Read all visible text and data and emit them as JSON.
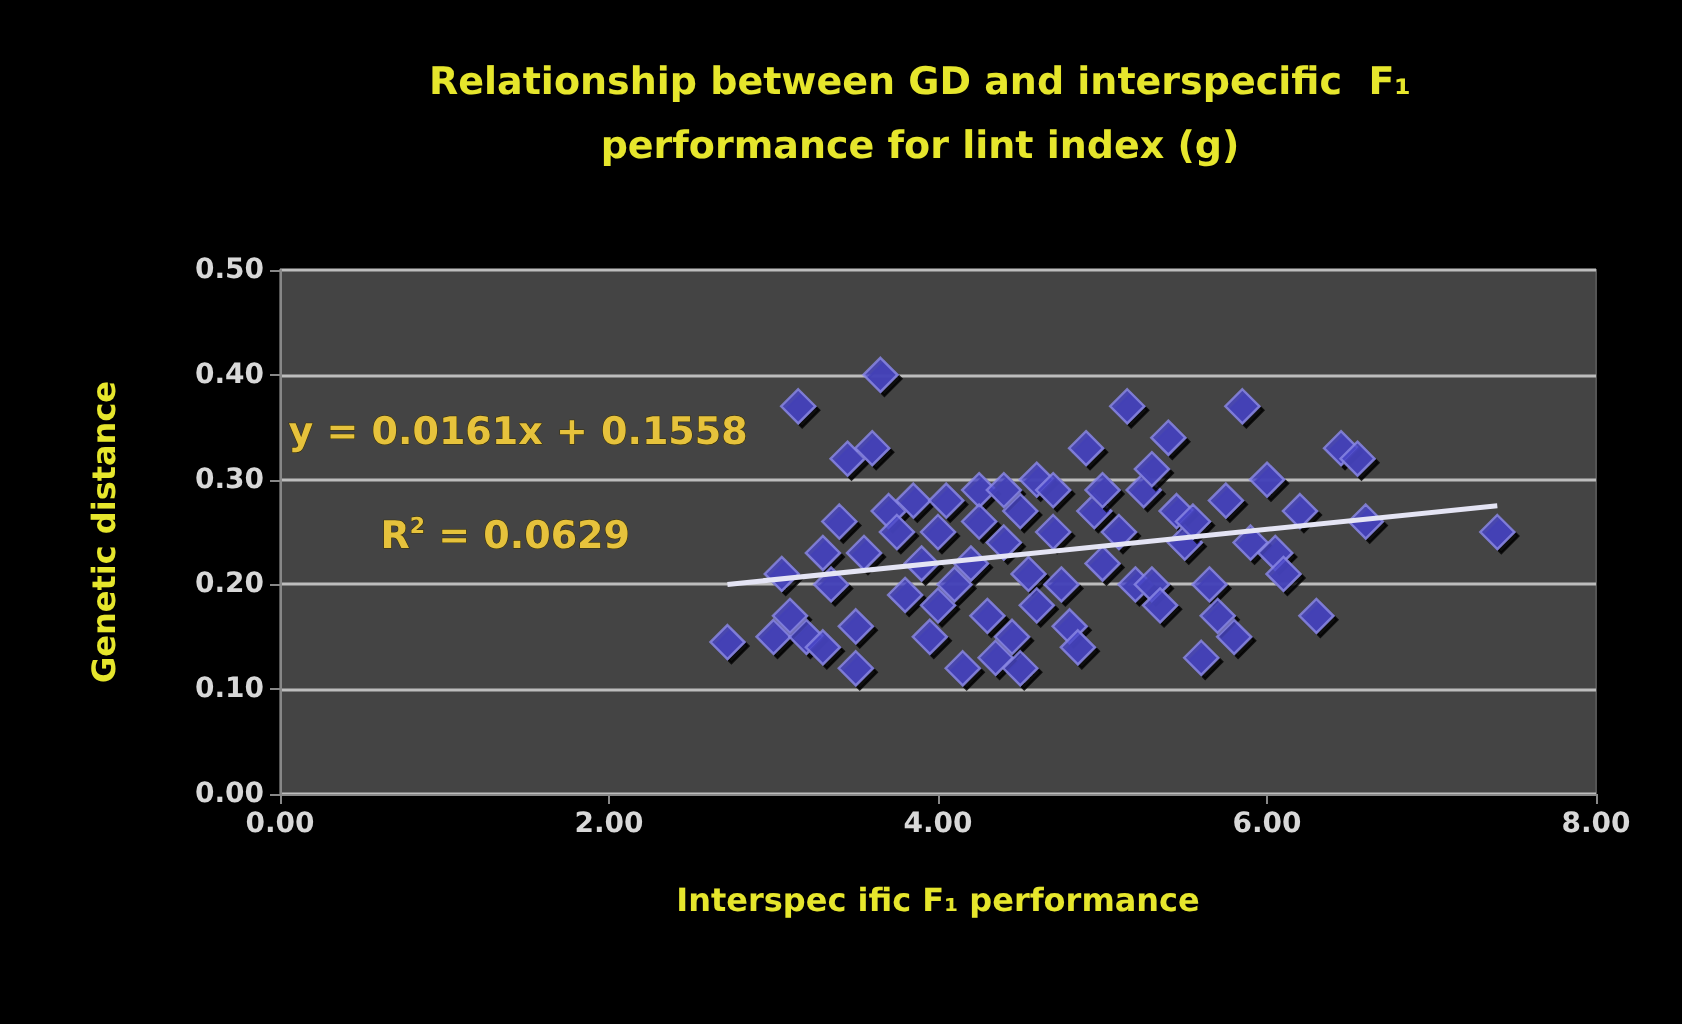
{
  "chart_data": {
    "type": "scatter",
    "title": "Relationship between GD and interspecific  F₁\nperformance for lint index (g)",
    "xlabel": "Interspec ific F₁ performance",
    "ylabel": "Genetic distance",
    "annotations": [
      "y = 0.0161x + 0.1558",
      "R$^{2}$ = 0.0629"
    ],
    "series": [
      {
        "color": "#4b49c9",
        "marker": "diamond",
        "x": [
          2.72,
          3.0,
          3.05,
          3.1,
          3.15,
          3.2,
          3.3,
          3.3,
          3.35,
          3.4,
          3.45,
          3.5,
          3.5,
          3.55,
          3.6,
          3.65,
          3.7,
          3.75,
          3.8,
          3.85,
          3.9,
          3.95,
          4.0,
          4.0,
          4.05,
          4.1,
          4.15,
          4.2,
          4.25,
          4.25,
          4.3,
          4.35,
          4.4,
          4.4,
          4.45,
          4.5,
          4.5,
          4.55,
          4.6,
          4.6,
          4.7,
          4.7,
          4.75,
          4.8,
          4.85,
          4.9,
          4.95,
          5.0,
          5.0,
          5.1,
          5.15,
          5.2,
          5.25,
          5.3,
          5.3,
          5.35,
          5.4,
          5.45,
          5.5,
          5.55,
          5.6,
          5.65,
          5.7,
          5.75,
          5.8,
          5.85,
          5.9,
          6.0,
          6.05,
          6.1,
          6.2,
          6.3,
          6.45,
          6.55,
          6.6,
          7.4
        ],
        "values": [
          0.145,
          0.15,
          0.21,
          0.17,
          0.37,
          0.15,
          0.14,
          0.23,
          0.2,
          0.26,
          0.32,
          0.16,
          0.12,
          0.23,
          0.33,
          0.4,
          0.27,
          0.25,
          0.19,
          0.28,
          0.22,
          0.15,
          0.25,
          0.18,
          0.28,
          0.2,
          0.12,
          0.22,
          0.29,
          0.26,
          0.17,
          0.13,
          0.24,
          0.29,
          0.15,
          0.27,
          0.12,
          0.21,
          0.18,
          0.3,
          0.25,
          0.29,
          0.2,
          0.16,
          0.14,
          0.33,
          0.27,
          0.22,
          0.29,
          0.25,
          0.37,
          0.2,
          0.29,
          0.31,
          0.2,
          0.18,
          0.34,
          0.27,
          0.24,
          0.26,
          0.13,
          0.2,
          0.17,
          0.28,
          0.15,
          0.37,
          0.24,
          0.3,
          0.23,
          0.21,
          0.27,
          0.17,
          0.33,
          0.32,
          0.26,
          0.25
        ]
      },
      {
        "type": "line",
        "color": "#e4e4f4",
        "marker": "none",
        "x": [
          2.72,
          7.4
        ],
        "values": [
          0.2,
          0.275
        ]
      }
    ],
    "xlim": [
      0,
      8
    ],
    "xticks": [
      {
        "value": 0,
        "label": "0.00"
      },
      {
        "value": 2,
        "label": "2.00"
      },
      {
        "value": 4,
        "label": "4.00"
      },
      {
        "value": 6,
        "label": "6.00"
      },
      {
        "value": 8,
        "label": "8.00"
      }
    ],
    "ylim": [
      0,
      0.5
    ],
    "yticks": [
      {
        "value": 0,
        "label": "0.00"
      },
      {
        "value": 0.1,
        "label": "0.10"
      },
      {
        "value": 0.2,
        "label": "0.20"
      },
      {
        "value": 0.3,
        "label": "0.30"
      },
      {
        "value": 0.4,
        "label": "0.40"
      },
      {
        "value": 0.5,
        "label": "0.50"
      }
    ],
    "grid": "y"
  }
}
